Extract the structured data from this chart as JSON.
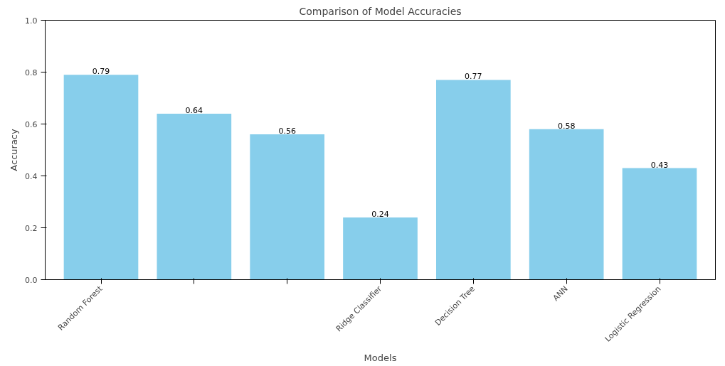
{
  "chart_data": {
    "type": "bar",
    "title": "Comparison of Model Accuracies",
    "xlabel": "Models",
    "ylabel": "Accuracy",
    "categories": [
      "Random Forest",
      null,
      null,
      "Ridge Classifier",
      "Decision Tree",
      "ANN",
      "Logistic Regression"
    ],
    "values": [
      0.79,
      0.64,
      0.56,
      0.24,
      0.77,
      0.58,
      0.43
    ],
    "color": "#87ceeb",
    "ylim": [
      0,
      1
    ],
    "yticks": [
      {
        "value": 0,
        "label": "0.0"
      },
      {
        "value": 0.2,
        "label": "0.2"
      },
      {
        "value": 0.4,
        "label": "0.4"
      },
      {
        "value": 0.6,
        "label": "0.6"
      },
      {
        "value": 0.8,
        "label": "0.8"
      },
      {
        "value": 1,
        "label": "1.0"
      }
    ],
    "data_labels": true,
    "grid": false
  }
}
